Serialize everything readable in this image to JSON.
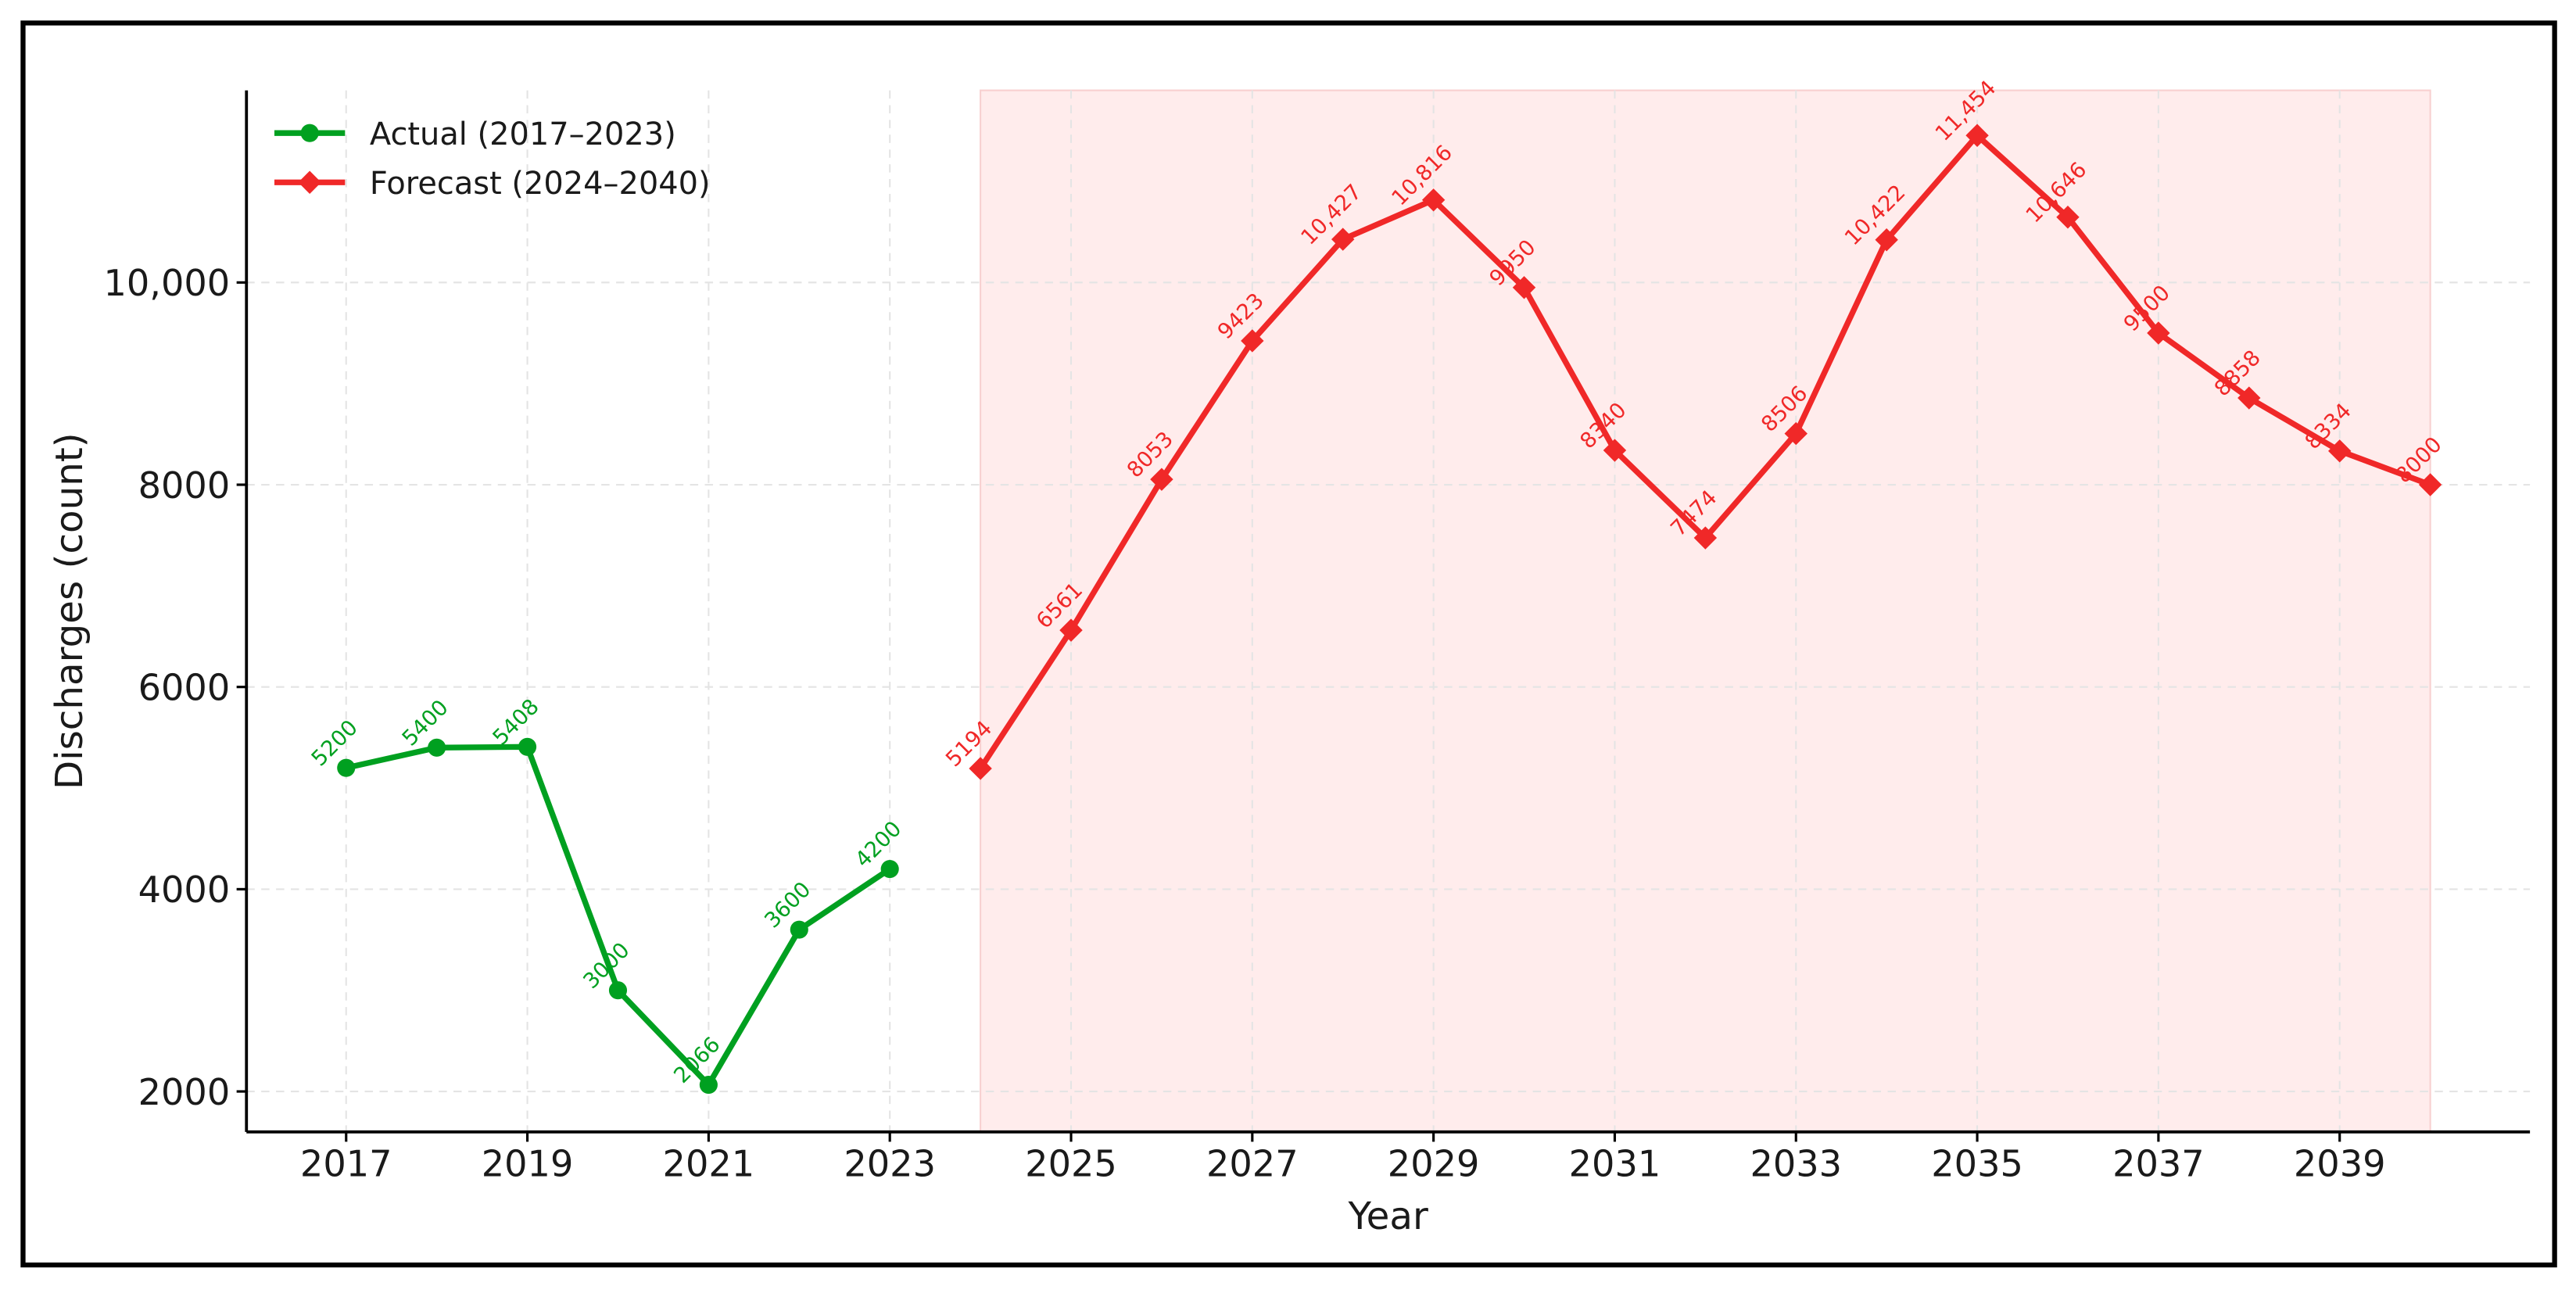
{
  "chart_data": {
    "type": "line",
    "xlabel": "Year",
    "ylabel": "Discharges (count)",
    "xlim": [
      2015.9,
      2041.1
    ],
    "ylim": [
      1600,
      11900
    ],
    "xticks": [
      2017,
      2019,
      2021,
      2023,
      2025,
      2027,
      2029,
      2031,
      2033,
      2035,
      2037,
      2039
    ],
    "yticks": [
      2000,
      4000,
      6000,
      8000,
      {
        "value": 10000,
        "label": "10,000"
      }
    ],
    "grid": true,
    "legend": "upper left",
    "shaded_region": {
      "xlim": [
        2024,
        2040
      ],
      "color": "#ffecec"
    },
    "series": [
      {
        "name": "Actual (2017–2023)",
        "color": "#00a020",
        "marker": "circle",
        "x": [
          2017,
          2018,
          2019,
          2020,
          2021,
          2022,
          2023
        ],
        "values": [
          5200,
          5400,
          5408,
          3000,
          2066,
          3600,
          4200
        ],
        "value_labels": [
          "5200",
          "5400",
          "5408",
          "3000",
          "2066",
          "3600",
          "4200"
        ]
      },
      {
        "name": "Forecast (2024–2040)",
        "color": "#f02828",
        "marker": "diamond",
        "x": [
          2024,
          2025,
          2026,
          2027,
          2028,
          2029,
          2030,
          2031,
          2032,
          2033,
          2034,
          2035,
          2036,
          2037,
          2038,
          2039,
          2040
        ],
        "values": [
          5194,
          6561,
          8053,
          9423,
          10427,
          10816,
          9950,
          8340,
          7474,
          8506,
          10422,
          11454,
          10646,
          9500,
          8858,
          8334,
          8000
        ],
        "value_labels": [
          "5194",
          "6561",
          "8053",
          "9423",
          "10,427",
          "10,816",
          "9950",
          "8340",
          "7474",
          "8506",
          "10,422",
          "11,454",
          "10,646",
          "9500",
          "8858",
          "8334",
          "8000"
        ]
      }
    ]
  }
}
